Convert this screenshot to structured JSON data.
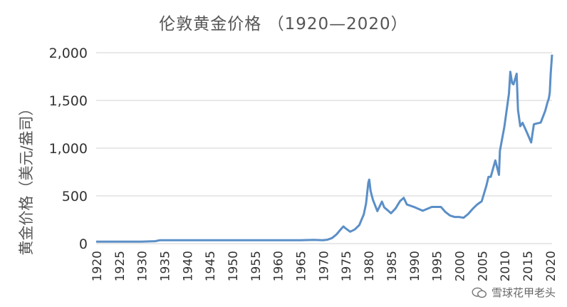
{
  "watermark": "雪球花甲老头",
  "chart_data": {
    "type": "line",
    "title": "伦敦黄金价格 （1920—2020）",
    "xlabel": "",
    "ylabel": "黄金价格（美元/盎司）",
    "xlim": [
      1920,
      2020.5
    ],
    "ylim": [
      0,
      2000
    ],
    "x_ticks": [
      1920,
      1925,
      1930,
      1935,
      1940,
      1945,
      1950,
      1955,
      1960,
      1965,
      1970,
      1975,
      1980,
      1985,
      1990,
      1995,
      2000,
      2005,
      2010,
      2015,
      2020
    ],
    "x_tick_labels": [
      "1920",
      "1925",
      "1930",
      "1935",
      "1940",
      "1945",
      "1950",
      "1955",
      "1960",
      "1965",
      "1970",
      "1975",
      "1980",
      "1985",
      "1990",
      "1995",
      "2000",
      "2005",
      "2010",
      "2015",
      "2020"
    ],
    "y_ticks": [
      0,
      500,
      1000,
      1500,
      2000
    ],
    "y_tick_labels": [
      "0",
      "500",
      "1,000",
      "1,500",
      "2,000"
    ],
    "grid": "horizontal",
    "color": "#5b8fc7",
    "series": [
      {
        "name": "",
        "x": [
          1920,
          1925,
          1930,
          1933,
          1934,
          1935,
          1940,
          1945,
          1950,
          1955,
          1960,
          1965,
          1968,
          1970,
          1971,
          1972,
          1973,
          1974,
          1974.5,
          1975,
          1976,
          1977,
          1978,
          1979,
          1979.5,
          1980,
          1980.2,
          1980.5,
          1981,
          1982,
          1983,
          1983.5,
          1984,
          1985,
          1986,
          1987,
          1987.8,
          1988.5,
          1990,
          1992,
          1994,
          1996,
          1997,
          1998,
          1999,
          2000,
          2001,
          2002,
          2003,
          2004,
          2005,
          2006,
          2006.5,
          2007,
          2008,
          2008.8,
          2009,
          2010,
          2011,
          2011.3,
          2011.7,
          2012,
          2012.7,
          2013,
          2013.5,
          2014,
          2015,
          2015.9,
          2016.5,
          2017,
          2018,
          2019,
          2019.5,
          2019.8,
          2020,
          2020.2,
          2020.5
        ],
        "y": [
          20,
          20,
          20,
          25,
          35,
          35,
          35,
          35,
          35,
          35,
          35,
          35,
          39,
          36,
          41,
          58,
          97,
          154,
          180,
          160,
          125,
          148,
          194,
          306,
          420,
          640,
          670,
          550,
          460,
          340,
          440,
          380,
          360,
          318,
          368,
          446,
          480,
          410,
          385,
          344,
          384,
          384,
          331,
          294,
          279,
          279,
          271,
          310,
          364,
          410,
          444,
          604,
          700,
          700,
          872,
          720,
          972,
          1225,
          1571,
          1800,
          1680,
          1669,
          1780,
          1400,
          1230,
          1266,
          1160,
          1060,
          1250,
          1257,
          1268,
          1390,
          1480,
          1520,
          1580,
          1780,
          1980
        ]
      }
    ]
  }
}
